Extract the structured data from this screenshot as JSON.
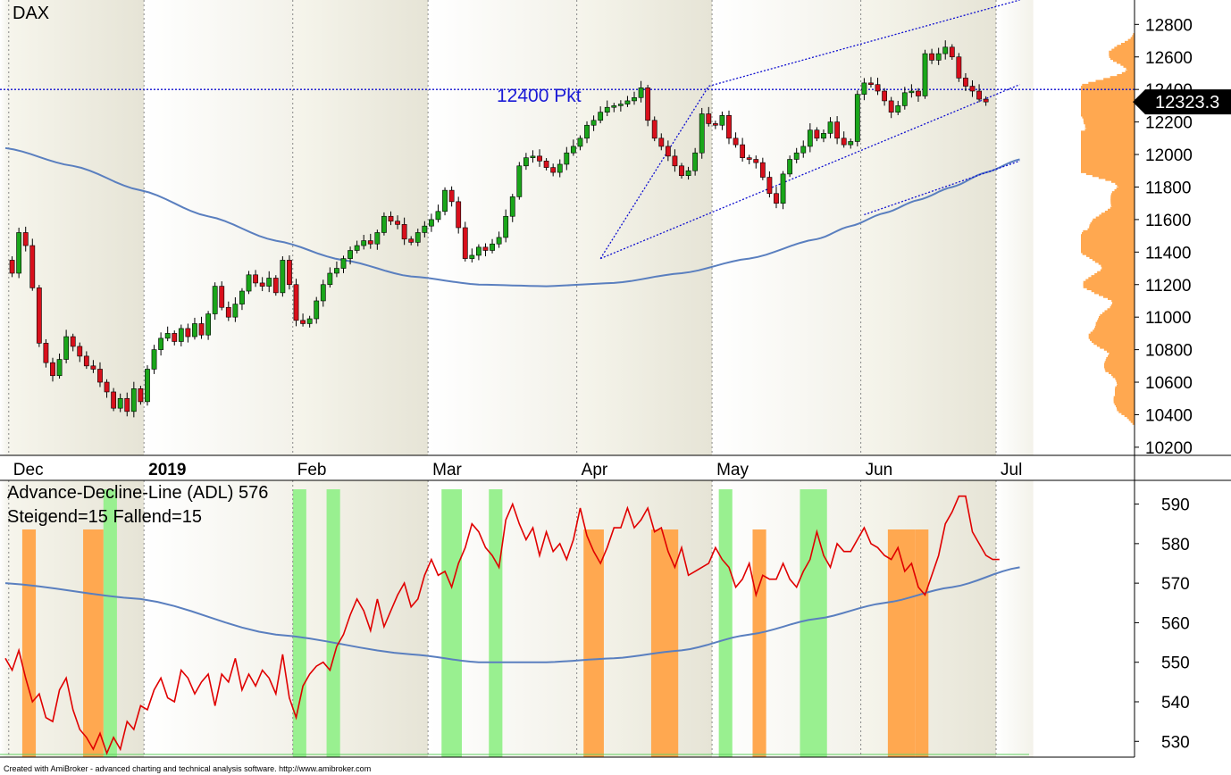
{
  "price_chart": {
    "title": "DAX",
    "level_label": "12400 Pkt",
    "last_value_label": "12323.3",
    "y_ticks": [
      "12800",
      "12600",
      "12400",
      "12200",
      "12000",
      "11800",
      "11600",
      "11400",
      "11200",
      "11000",
      "10800",
      "10600",
      "10400",
      "10200"
    ],
    "month_labels": [
      "Dec",
      "2019",
      "Feb",
      "Mar",
      "Apr",
      "May",
      "Jun",
      "Jul"
    ]
  },
  "adl_chart": {
    "title": "Advance-Decline-Line (ADL) 576",
    "subtitle": "Steigend=15  Fallend=15",
    "y_ticks": [
      "590",
      "580",
      "570",
      "560",
      "550",
      "540",
      "530"
    ]
  },
  "footer": "Created with AmiBroker - advanced charting and technical analysis software. http://www.amibroker.com",
  "colors": {
    "up_candle": "#1aa61a",
    "down_candle": "#d8101c",
    "moving_average": "#5a7fbf",
    "channel": "#1010d0",
    "adl_line": "#e00000",
    "rising_band": "#99f090",
    "falling_band": "#ffa850",
    "volume_profile": "#ffa850",
    "price_tag": "#000000"
  },
  "chart_data": [
    {
      "type": "candlestick",
      "title": "DAX",
      "ylim": [
        10150,
        12950
      ],
      "y_tick_values": [
        12800,
        12600,
        12400,
        12200,
        12000,
        11800,
        11600,
        11400,
        11200,
        11000,
        10800,
        10600,
        10400,
        10200
      ],
      "months": [
        {
          "label": "Dec",
          "x": 1
        },
        {
          "label": "2019",
          "x": 21
        },
        {
          "label": "Feb",
          "x": 43
        },
        {
          "label": "Mar",
          "x": 63
        },
        {
          "label": "Apr",
          "x": 85
        },
        {
          "label": "May",
          "x": 105
        },
        {
          "label": "Jun",
          "x": 127
        },
        {
          "label": "Jul",
          "x": 147
        }
      ],
      "close_series": [
        11350,
        11270,
        11520,
        11440,
        11180,
        10840,
        10720,
        10640,
        10740,
        10880,
        10820,
        10760,
        10700,
        10680,
        10600,
        10540,
        10440,
        10500,
        10420,
        10560,
        10480,
        10680,
        10800,
        10870,
        10900,
        10850,
        10930,
        10880,
        10960,
        10890,
        11020,
        11190,
        11060,
        11000,
        11080,
        11160,
        11260,
        11210,
        11190,
        11240,
        11150,
        11350,
        11200,
        10980,
        10960,
        10990,
        11100,
        11200,
        11270,
        11300,
        11360,
        11410,
        11440,
        11470,
        11450,
        11520,
        11620,
        11590,
        11570,
        11480,
        11460,
        11520,
        11560,
        11600,
        11650,
        11780,
        11710,
        11550,
        11360,
        11380,
        11430,
        11410,
        11450,
        11490,
        11620,
        11740,
        11930,
        11980,
        11990,
        11960,
        11920,
        11890,
        11940,
        12010,
        12050,
        12100,
        12180,
        12210,
        12260,
        12290,
        12300,
        12310,
        12330,
        12350,
        12410,
        12210,
        12100,
        12050,
        11990,
        11930,
        11870,
        11900,
        12010,
        12250,
        12190,
        12180,
        12240,
        12100,
        12060,
        11980,
        11970,
        11950,
        11860,
        11760,
        11700,
        11880,
        11970,
        12010,
        12050,
        12150,
        12100,
        12130,
        12200,
        12100,
        12060,
        12080,
        12370,
        12440,
        12430,
        12390,
        12330,
        12260,
        12300,
        12380,
        12390,
        12360,
        12620,
        12580,
        12620,
        12660,
        12600,
        12470,
        12420,
        12390,
        12340,
        12323.3
      ],
      "series": [
        {
          "name": "",
          "kind": "moving_average",
          "values": [
            [
              0,
              12040
            ],
            [
              10,
              11930
            ],
            [
              20,
              11780
            ],
            [
              30,
              11620
            ],
            [
              40,
              11470
            ],
            [
              50,
              11350
            ],
            [
              60,
              11250
            ],
            [
              70,
              11200
            ],
            [
              80,
              11190
            ],
            [
              90,
              11210
            ],
            [
              100,
              11270
            ],
            [
              110,
              11360
            ],
            [
              120,
              11480
            ],
            [
              125,
              11560
            ],
            [
              130,
              11640
            ],
            [
              135,
              11720
            ],
            [
              140,
              11800
            ],
            [
              145,
              11890
            ],
            [
              150,
              11970
            ]
          ]
        }
      ],
      "reference_line": {
        "value": 12400,
        "label": "12400 Pkt"
      },
      "channels": [
        {
          "points": [
            [
              88,
              11360
            ],
            [
              104,
              12420
            ],
            [
              150,
              12950
            ]
          ]
        },
        {
          "points": [
            [
              88,
              11360
            ],
            [
              150,
              12430
            ]
          ]
        },
        {
          "points": [
            [
              127,
              11630
            ],
            [
              150,
              11960
            ]
          ]
        }
      ],
      "last_value": 12323.3
    },
    {
      "type": "line",
      "title": "Advance-Decline-Line (ADL) 576",
      "subtitle": "Steigend=15  Fallend=15",
      "ylim": [
        526,
        596
      ],
      "y_tick_values": [
        590,
        580,
        570,
        560,
        550,
        540,
        530
      ],
      "series": [
        {
          "name": "",
          "kind": "adl",
          "values": [
            551,
            548,
            553,
            546,
            540,
            542,
            536,
            535,
            543,
            546,
            538,
            533,
            531,
            528,
            532,
            527,
            531,
            528,
            535,
            533,
            539,
            538,
            543,
            546,
            541,
            540,
            548,
            546,
            542,
            545,
            547,
            539,
            547,
            545,
            551,
            543,
            547,
            544,
            548,
            546,
            542,
            552,
            541,
            536,
            544,
            547,
            549,
            550,
            548,
            554,
            557,
            562,
            566,
            563,
            558,
            566,
            559,
            563,
            567,
            570,
            564,
            566,
            572,
            576,
            572,
            573,
            569,
            575,
            579,
            585,
            583,
            579,
            577,
            574,
            586,
            590,
            585,
            581,
            584,
            577,
            583,
            578,
            580,
            576,
            581,
            589,
            582,
            578,
            575,
            579,
            584,
            584,
            589,
            584,
            586,
            589,
            583,
            584,
            578,
            574,
            579,
            572,
            573,
            574,
            575,
            579,
            576,
            574,
            569,
            571,
            575,
            567,
            572,
            571,
            571,
            575,
            571,
            569,
            573,
            576,
            583,
            577,
            574,
            580,
            578,
            578,
            581,
            584,
            580,
            579,
            577,
            576,
            579,
            573,
            575,
            569,
            567,
            572,
            577,
            585,
            588,
            592,
            592,
            583,
            580,
            577,
            576,
            576
          ]
        },
        {
          "name": "",
          "kind": "moving_average",
          "values": [
            [
              0,
              570
            ],
            [
              20,
              566
            ],
            [
              40,
              557
            ],
            [
              60,
              552
            ],
            [
              70,
              550
            ],
            [
              80,
              550
            ],
            [
              90,
              551
            ],
            [
              100,
              553
            ],
            [
              110,
              557
            ],
            [
              120,
              561
            ],
            [
              130,
              565
            ],
            [
              140,
              569
            ],
            [
              150,
              574
            ]
          ]
        }
      ],
      "rising_bands": [
        [
          15,
          16
        ],
        [
          43,
          44
        ],
        [
          48,
          49
        ],
        [
          65,
          67
        ],
        [
          72,
          73
        ],
        [
          106,
          107
        ],
        [
          118,
          121
        ]
      ],
      "falling_bands": [
        [
          3,
          4
        ],
        [
          12,
          14
        ],
        [
          86,
          88
        ],
        [
          96,
          99
        ],
        [
          111,
          112
        ],
        [
          131,
          134
        ],
        [
          135,
          136
        ]
      ]
    }
  ]
}
